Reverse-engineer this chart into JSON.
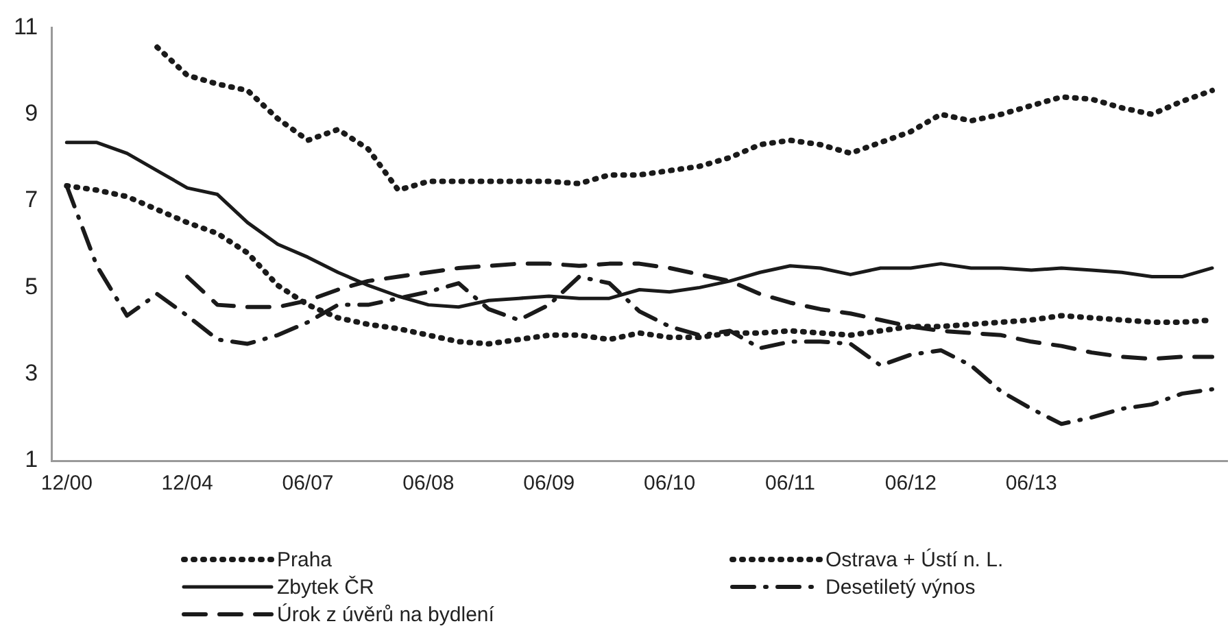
{
  "chart_data": {
    "type": "line",
    "categories": [
      "12/00",
      null,
      null,
      null,
      "12/04",
      null,
      null,
      null,
      "06/07",
      null,
      null,
      null,
      "06/08",
      null,
      null,
      null,
      "06/09",
      null,
      null,
      null,
      "06/10",
      null,
      null,
      null,
      "06/11",
      null,
      null,
      null,
      "06/12",
      null,
      null,
      null,
      "06/13",
      null,
      null,
      null,
      null,
      null,
      null
    ],
    "series": [
      {
        "name": "Praha",
        "color": "#1a1a1a",
        "line_style": "dotted",
        "values": [
          7.35,
          7.25,
          7.1,
          6.8,
          6.5,
          6.25,
          5.8,
          5.05,
          4.6,
          4.3,
          4.15,
          4.05,
          3.9,
          3.75,
          3.7,
          3.8,
          3.9,
          3.9,
          3.8,
          3.95,
          3.85,
          3.85,
          3.95,
          3.95,
          4.0,
          3.95,
          3.9,
          4.0,
          4.1,
          4.1,
          4.15,
          4.2,
          4.25,
          4.35,
          4.3,
          4.25,
          4.2,
          4.2,
          4.25
        ]
      },
      {
        "name": "Ostrava + Ústí n. L.",
        "color": "#1a1a1a",
        "line_style": "dotted",
        "values": [
          null,
          null,
          null,
          10.55,
          9.9,
          9.7,
          9.55,
          8.9,
          8.4,
          8.65,
          8.2,
          7.25,
          7.45,
          7.45,
          7.45,
          7.45,
          7.45,
          7.4,
          7.6,
          7.6,
          7.7,
          7.8,
          8.0,
          8.3,
          8.4,
          8.3,
          8.1,
          8.35,
          8.6,
          9.0,
          8.85,
          9.0,
          9.2,
          9.4,
          9.35,
          9.15,
          9.0,
          9.3,
          9.55
        ]
      },
      {
        "name": "Zbytek ČR",
        "color": "#1a1a1a",
        "line_style": "solid",
        "values": [
          8.35,
          8.35,
          8.1,
          7.7,
          7.3,
          7.15,
          6.5,
          6.0,
          5.7,
          5.35,
          5.05,
          4.8,
          4.6,
          4.55,
          4.7,
          4.75,
          4.8,
          4.75,
          4.75,
          4.95,
          4.9,
          5.0,
          5.15,
          5.35,
          5.5,
          5.45,
          5.3,
          5.45,
          5.45,
          5.55,
          5.45,
          5.45,
          5.4,
          5.45,
          5.4,
          5.35,
          5.25,
          5.25,
          5.45
        ]
      },
      {
        "name": "Desetiletý výnos",
        "color": "#1a1a1a",
        "line_style": "dashdot",
        "values": [
          7.35,
          5.5,
          4.35,
          4.85,
          4.35,
          3.8,
          3.7,
          3.9,
          4.2,
          4.6,
          4.6,
          4.75,
          4.9,
          5.1,
          4.5,
          4.25,
          4.6,
          5.25,
          5.1,
          4.45,
          4.1,
          3.9,
          4.0,
          3.6,
          3.75,
          3.75,
          3.7,
          3.2,
          3.45,
          3.55,
          3.2,
          2.6,
          2.2,
          1.85,
          2.0,
          2.2,
          2.3,
          2.55,
          2.65
        ]
      },
      {
        "name": "Úrok z úvěrů na bydlení",
        "color": "#1a1a1a",
        "line_style": "dashed",
        "values": [
          null,
          null,
          null,
          null,
          5.25,
          4.6,
          4.55,
          4.55,
          4.7,
          4.95,
          5.15,
          5.25,
          5.35,
          5.45,
          5.5,
          5.55,
          5.55,
          5.5,
          5.55,
          5.55,
          5.45,
          5.3,
          5.15,
          4.85,
          4.65,
          4.5,
          4.4,
          4.25,
          4.1,
          4.0,
          3.95,
          3.9,
          3.75,
          3.65,
          3.5,
          3.4,
          3.35,
          3.4,
          3.4
        ]
      }
    ],
    "ylim": [
      1,
      11
    ],
    "yticks": [
      1,
      3,
      5,
      7,
      9,
      11
    ],
    "grid": false,
    "legend": "bottom",
    "marker": "none"
  }
}
